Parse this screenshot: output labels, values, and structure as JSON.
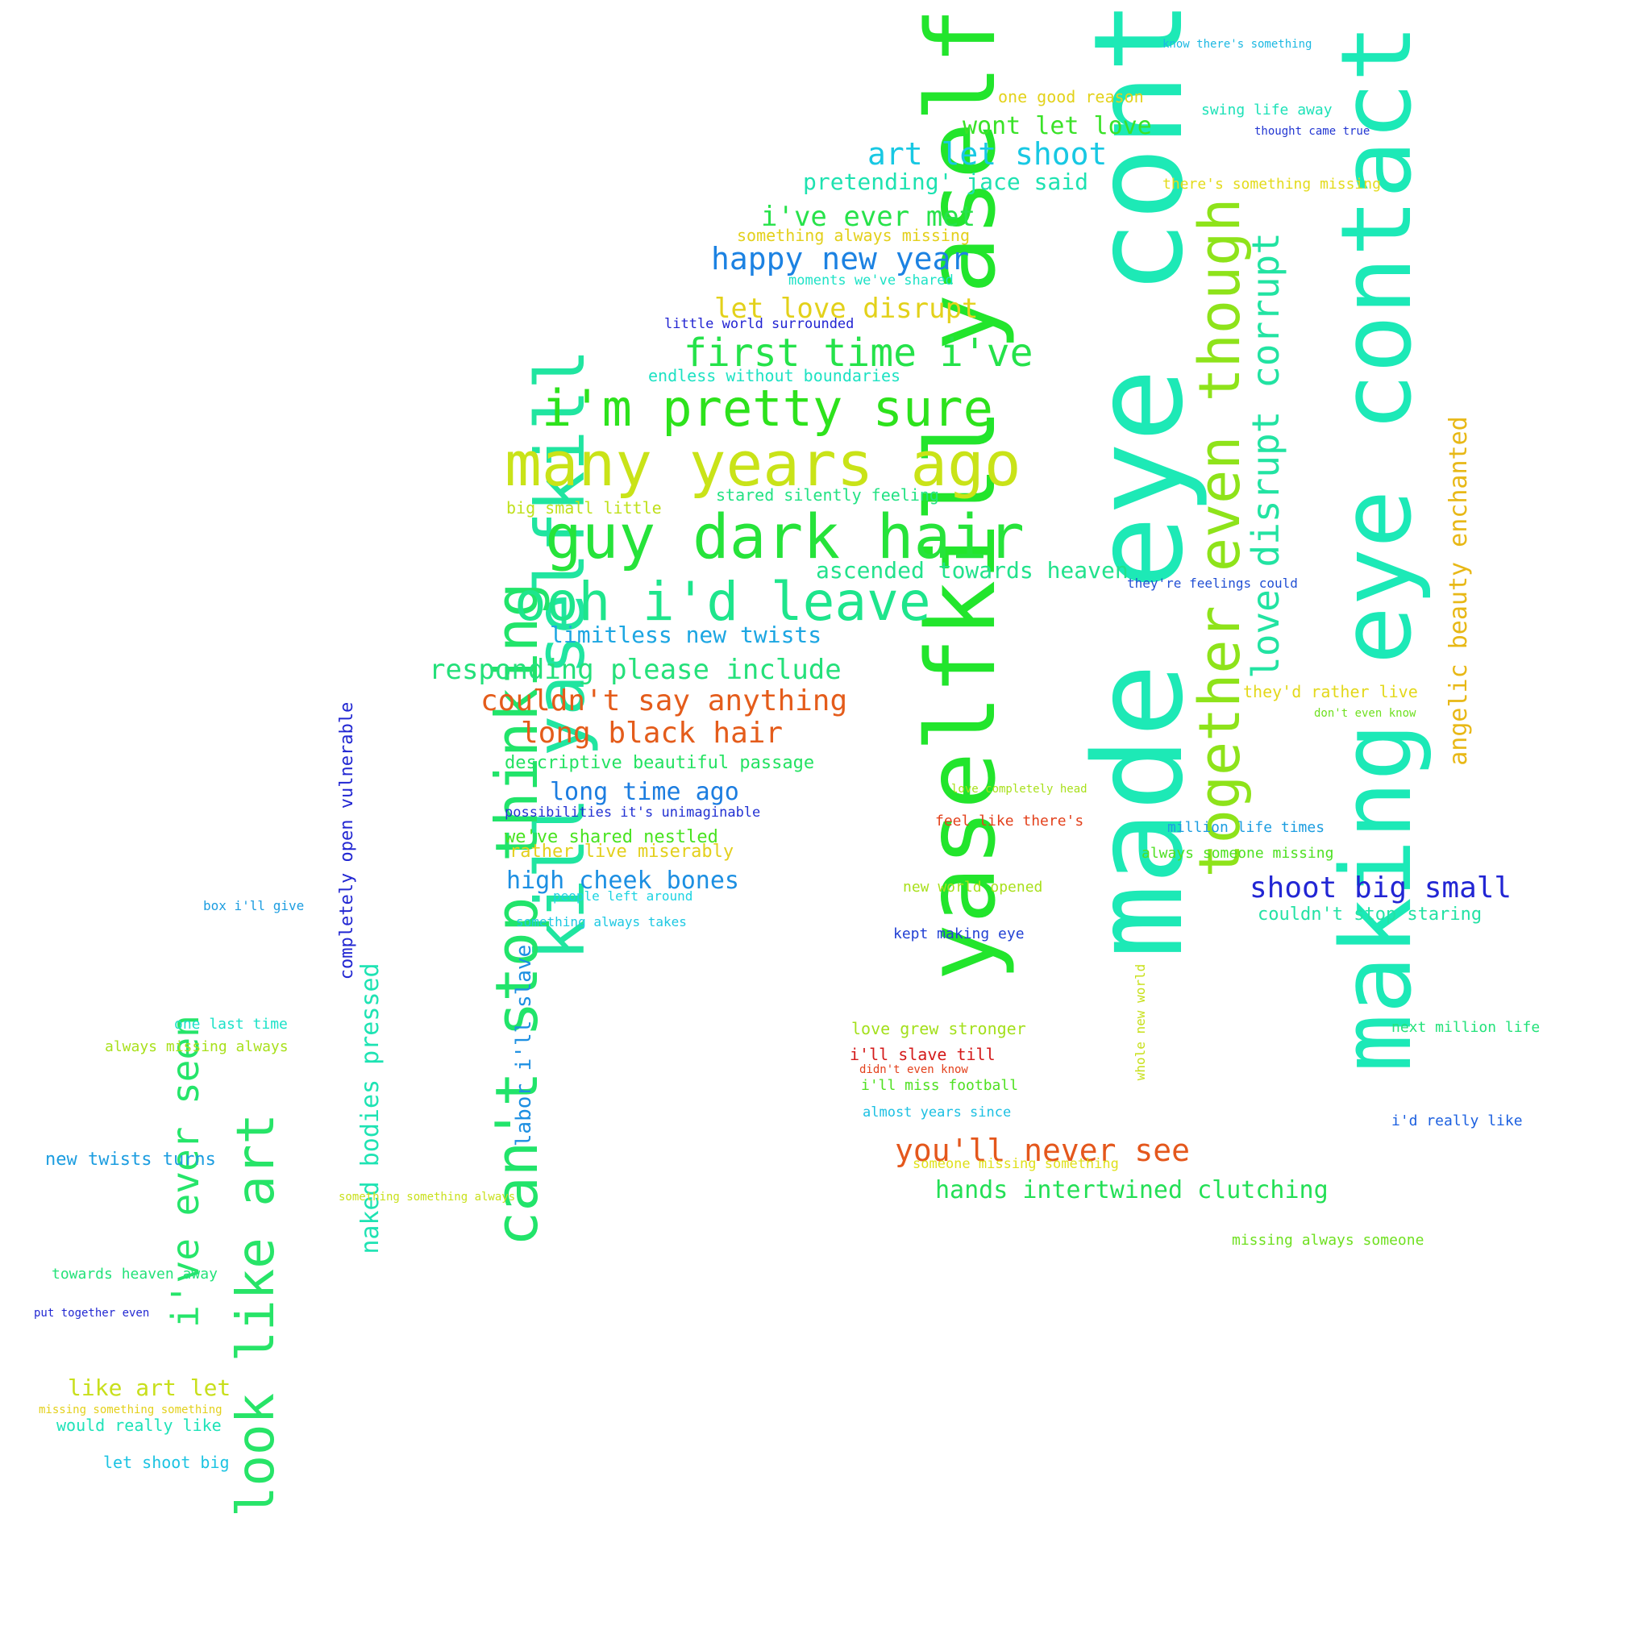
{
  "words": [
    {
      "text": "made eye contact",
      "color": "#1de9b6"
    },
    {
      "text": "yaselfkill yaself",
      "color": "#22e52c"
    },
    {
      "text": "making eye contact",
      "color": "#1ce9b7"
    },
    {
      "text": "kill yaselfkill",
      "color": "#20e5a0"
    },
    {
      "text": "together even though",
      "color": "#8ee31a"
    },
    {
      "text": "can't stop thinking",
      "color": "#21e46a"
    },
    {
      "text": "many years ago",
      "color": "#c9e318"
    },
    {
      "text": "guy dark hair",
      "color": "#26e33a"
    },
    {
      "text": "i'm pretty sure",
      "color": "#2de21c"
    },
    {
      "text": "ooh i'd leave",
      "color": "#1ee58c"
    },
    {
      "text": "look like art",
      "color": "#27e468"
    },
    {
      "text": "love disrupt corrupt",
      "color": "#22e3a2"
    },
    {
      "text": "i've ever seen",
      "color": "#25e56a"
    },
    {
      "text": "angelic beauty enchanted",
      "color": "#e8b816"
    },
    {
      "text": "first time i've",
      "color": "#25e24a"
    },
    {
      "text": "couldn't say anything",
      "color": "#e45c1b"
    },
    {
      "text": "long black hair",
      "color": "#e45c1b"
    },
    {
      "text": "responding please include",
      "color": "#24e07a"
    },
    {
      "text": "art let shoot",
      "color": "#18c8e3"
    },
    {
      "text": "happy new year",
      "color": "#1c82e2"
    },
    {
      "text": "you'll never see",
      "color": "#e4571c"
    },
    {
      "text": "shoot big small",
      "color": "#2226d4"
    },
    {
      "text": "naked bodies pressed",
      "color": "#1ee3b3"
    },
    {
      "text": "let love disrupt",
      "color": "#e3d11a"
    },
    {
      "text": "i've ever met",
      "color": "#27e24a"
    },
    {
      "text": "high cheek bones",
      "color": "#1c8fe2"
    },
    {
      "text": "wont let love",
      "color": "#3ae228"
    },
    {
      "text": "long time ago",
      "color": "#1c7de0"
    },
    {
      "text": "limitless new twists",
      "color": "#1ca6e2"
    },
    {
      "text": "hands intertwined clutching",
      "color": "#23df55"
    },
    {
      "text": "ascended towards heaven",
      "color": "#22e28c"
    },
    {
      "text": "pretending' jace said",
      "color": "#1de2b0"
    },
    {
      "text": "like art let",
      "color": "#c8df1b"
    },
    {
      "text": "labor i'll slave",
      "color": "#1c8fe2"
    },
    {
      "text": "completely open vulnerable",
      "color": "#2227d2"
    },
    {
      "text": "descriptive beautiful passage",
      "color": "#23e262"
    },
    {
      "text": "we've shared nestled",
      "color": "#48e320"
    },
    {
      "text": "couldn't stop staring",
      "color": "#23e2a4"
    },
    {
      "text": "rather live miserably",
      "color": "#e3cf1b"
    },
    {
      "text": "new twists turns",
      "color": "#1c9de0"
    },
    {
      "text": "one good reason",
      "color": "#e3d21b"
    },
    {
      "text": "big small little",
      "color": "#bfe01b"
    },
    {
      "text": "stared silently feeling",
      "color": "#23e283"
    },
    {
      "text": "something always missing",
      "color": "#e3d01b"
    },
    {
      "text": "endless without boundaries",
      "color": "#1de2c3"
    },
    {
      "text": "swing life away",
      "color": "#1de2b8"
    },
    {
      "text": "there's something missing",
      "color": "#e3db1b"
    },
    {
      "text": "they'd rather live",
      "color": "#e3d81b"
    },
    {
      "text": "would really like",
      "color": "#1fe2b8"
    },
    {
      "text": "let shoot big",
      "color": "#1cc3e2"
    },
    {
      "text": "one last time",
      "color": "#1de2c8"
    },
    {
      "text": "always missing always",
      "color": "#a8e01b"
    },
    {
      "text": "towards heaven away",
      "color": "#23e279"
    },
    {
      "text": "love grew stronger",
      "color": "#a3e01b"
    },
    {
      "text": "i'll slave till",
      "color": "#d41b1b"
    },
    {
      "text": "i'll miss football",
      "color": "#4fe022"
    },
    {
      "text": "feel like there's",
      "color": "#e3411c"
    },
    {
      "text": "million life times",
      "color": "#1c9de0"
    },
    {
      "text": "always someone missing",
      "color": "#4fe022"
    },
    {
      "text": "new world opened",
      "color": "#a8e01b"
    },
    {
      "text": "kept making eye",
      "color": "#2241d4"
    },
    {
      "text": "next million life",
      "color": "#23e27a"
    },
    {
      "text": "i'd really like",
      "color": "#1c60e0"
    },
    {
      "text": "missing always someone",
      "color": "#6fe020"
    },
    {
      "text": "someone missing something",
      "color": "#dfe01b"
    },
    {
      "text": "almost years since",
      "color": "#1cc0e2"
    },
    {
      "text": "possibilities it's unimaginable",
      "color": "#2231d2"
    },
    {
      "text": "people left around",
      "color": "#1cd3e2"
    },
    {
      "text": "something always takes",
      "color": "#1dc8e2"
    },
    {
      "text": "box i'll give",
      "color": "#1c9de0"
    },
    {
      "text": "moments we've shared",
      "color": "#1de2c6"
    },
    {
      "text": "little world surrounded",
      "color": "#2224d2"
    },
    {
      "text": "they're feelings could",
      "color": "#2250d4"
    },
    {
      "text": "know there's something",
      "color": "#1cb8e2"
    },
    {
      "text": "thought came true",
      "color": "#2236d2"
    },
    {
      "text": "don't even know",
      "color": "#6fe020"
    },
    {
      "text": "love completely head",
      "color": "#a8e01b"
    },
    {
      "text": "didn't even know",
      "color": "#e3411c"
    },
    {
      "text": "whole new world",
      "color": "#c8e01b"
    },
    {
      "text": "put together even",
      "color": "#2228d2"
    },
    {
      "text": "missing something something",
      "color": "#e3d01b"
    },
    {
      "text": "something something always",
      "color": "#c8e01b"
    }
  ]
}
